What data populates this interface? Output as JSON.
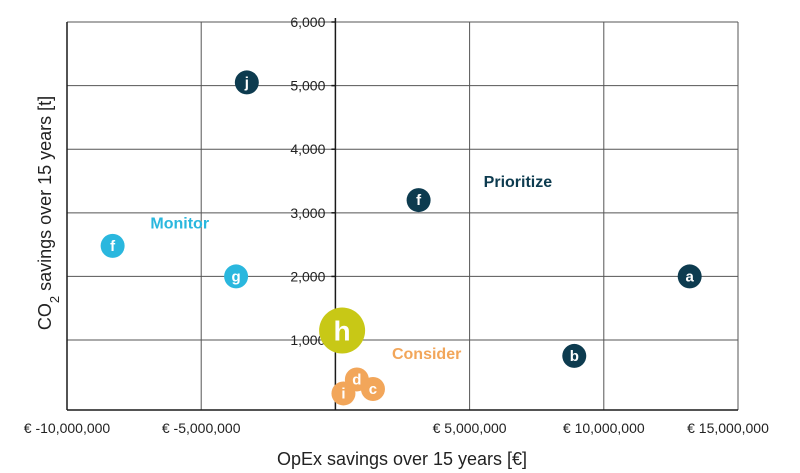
{
  "chart_data": {
    "type": "scatter",
    "xlabel": "OpEx savings over 15 years [€]",
    "ylabel": {
      "main": "CO",
      "sub": "2",
      "rest": " savings over 15 years [t]"
    },
    "xlim": [
      -10000000,
      15000000
    ],
    "ylim": [
      -100,
      6000
    ],
    "x_ticks": [
      {
        "value": -10000000,
        "label": "€ -10,000,000"
      },
      {
        "value": -5000000,
        "label": "€ -5,000,000"
      },
      {
        "value": 0,
        "label": "€ 0"
      },
      {
        "value": 5000000,
        "label": "€ 5,000,000"
      },
      {
        "value": 10000000,
        "label": "€ 10,000,000"
      },
      {
        "value": 15000000,
        "label": "€ 15,000,000"
      }
    ],
    "y_ticks": [
      {
        "value": 1000,
        "label": "1,000"
      },
      {
        "value": 2000,
        "label": "2,000"
      },
      {
        "value": 3000,
        "label": "3,000"
      },
      {
        "value": 4000,
        "label": "4,000"
      },
      {
        "value": 5000,
        "label": "5,000"
      },
      {
        "value": 6000,
        "label": "6,000"
      }
    ],
    "grid": true,
    "colors": {
      "prioritize": "#0d3b4f",
      "monitor": "#2ab7de",
      "consider": "#f2a65a",
      "highlight": "#c8c816"
    },
    "quadrant_labels": [
      {
        "text": "Prioritize",
        "x": 6800000,
        "y": 3500,
        "group": "prioritize"
      },
      {
        "text": "Monitor",
        "x": -5800000,
        "y": 2850,
        "group": "monitor"
      },
      {
        "text": "Consider",
        "x": 3400000,
        "y": 800,
        "group": "consider"
      }
    ],
    "points": [
      {
        "label": "a",
        "x": 13200000,
        "y": 2000,
        "group": "prioritize"
      },
      {
        "label": "b",
        "x": 8900000,
        "y": 750,
        "group": "prioritize"
      },
      {
        "label": "f",
        "x": 3100000,
        "y": 3200,
        "group": "prioritize"
      },
      {
        "label": "j",
        "x": -3300000,
        "y": 5050,
        "group": "prioritize"
      },
      {
        "label": "f",
        "x": -8300000,
        "y": 2480,
        "group": "monitor"
      },
      {
        "label": "g",
        "x": -3700000,
        "y": 2000,
        "group": "monitor"
      },
      {
        "label": "h",
        "x": 250000,
        "y": 1150,
        "group": "highlight",
        "size": "large"
      },
      {
        "label": "d",
        "x": 800000,
        "y": 380,
        "group": "consider"
      },
      {
        "label": "c",
        "x": 1400000,
        "y": 230,
        "group": "consider"
      },
      {
        "label": "i",
        "x": 300000,
        "y": 160,
        "group": "consider"
      }
    ]
  }
}
